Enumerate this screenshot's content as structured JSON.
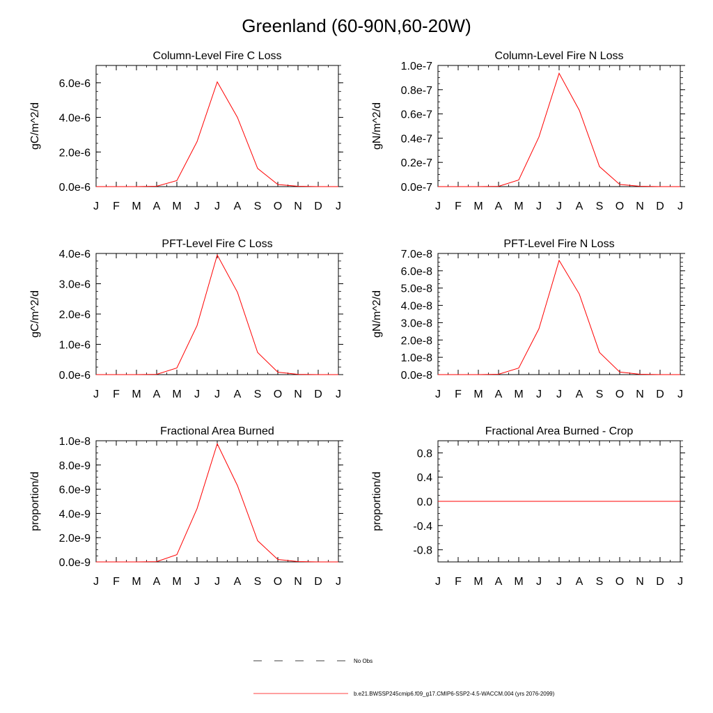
{
  "figure_title": "Greenland (60-90N,60-20W)",
  "month_labels": [
    "J",
    "F",
    "M",
    "A",
    "M",
    "J",
    "J",
    "A",
    "S",
    "O",
    "N",
    "D",
    "J"
  ],
  "colors": {
    "model": "#ff0000",
    "obs": "#000000",
    "axis": "#000000"
  },
  "legend": {
    "obs_label": "No Obs",
    "model_label": "b.e21.BWSSP245cmip6.f09_g17.CMIP6-SSP2-4.5-WACCM.004 (yrs 2076-2099)"
  },
  "chart_data": [
    {
      "type": "line",
      "title": "Column-Level Fire C Loss",
      "ylabel": "gC/m^2/d",
      "ylim": [
        0,
        7e-06
      ],
      "yticks": [
        0,
        2e-06,
        4e-06,
        6e-06
      ],
      "ytick_labels": [
        "0.0e-6",
        "2.0e-6",
        "4.0e-6",
        "6.0e-6"
      ],
      "minor_step": 5e-07,
      "series": [
        {
          "name": "b.e21.BWSSP245cmip6.f09_g17.CMIP6-SSP2-4.5-WACCM.004",
          "values": [
            0,
            0,
            0,
            2e-08,
            3.5e-07,
            2.6e-06,
            6.05e-06,
            4e-06,
            1.05e-06,
            1.2e-07,
            2e-08,
            0,
            0
          ]
        }
      ]
    },
    {
      "type": "line",
      "title": "Column-Level Fire N Loss",
      "ylabel": "gN/m^2/d",
      "ylim": [
        0,
        1e-07
      ],
      "yticks": [
        0,
        2e-08,
        4e-08,
        6e-08,
        8e-08,
        1e-07
      ],
      "ytick_labels": [
        "0.0e-7",
        "0.2e-7",
        "0.4e-7",
        "0.6e-7",
        "0.8e-7",
        "1.0e-7"
      ],
      "minor_step": 5e-09,
      "series": [
        {
          "name": "b.e21.BWSSP245cmip6.f09_g17.CMIP6-SSP2-4.5-WACCM.004",
          "values": [
            0,
            0,
            0,
            2e-10,
            5.5e-09,
            4.1e-08,
            9.35e-08,
            6.3e-08,
            1.65e-08,
            1.8e-09,
            3e-10,
            0,
            0
          ]
        }
      ]
    },
    {
      "type": "line",
      "title": "PFT-Level Fire C Loss",
      "ylabel": "gC/m^2/d",
      "ylim": [
        0,
        4e-06
      ],
      "yticks": [
        0,
        1e-06,
        2e-06,
        3e-06,
        4e-06
      ],
      "ytick_labels": [
        "0.0e-6",
        "1.0e-6",
        "2.0e-6",
        "3.0e-6",
        "4.0e-6"
      ],
      "minor_step": 2.5e-07,
      "series": [
        {
          "name": "b.e21.BWSSP245cmip6.f09_g17.CMIP6-SSP2-4.5-WACCM.004",
          "values": [
            0,
            0,
            0,
            1e-08,
            2.2e-07,
            1.62e-06,
            3.95e-06,
            2.72e-06,
            7.3e-07,
            8e-08,
            1e-08,
            0,
            0
          ]
        }
      ]
    },
    {
      "type": "line",
      "title": "PFT-Level Fire N Loss",
      "ylabel": "gN/m^2/d",
      "ylim": [
        0,
        7e-08
      ],
      "yticks": [
        0,
        1e-08,
        2e-08,
        3e-08,
        4e-08,
        5e-08,
        6e-08,
        7e-08
      ],
      "ytick_labels": [
        "0.0e-8",
        "1.0e-8",
        "2.0e-8",
        "3.0e-8",
        "4.0e-8",
        "5.0e-8",
        "6.0e-8",
        "7.0e-8"
      ],
      "minor_step": 2.5e-09,
      "series": [
        {
          "name": "b.e21.BWSSP245cmip6.f09_g17.CMIP6-SSP2-4.5-WACCM.004",
          "values": [
            0,
            0,
            0,
            2e-10,
            3.8e-09,
            2.65e-08,
            6.6e-08,
            4.65e-08,
            1.28e-08,
            1.5e-09,
            2e-10,
            0,
            0
          ]
        }
      ]
    },
    {
      "type": "line",
      "title": "Fractional Area Burned",
      "ylabel": "proportion/d",
      "ylim": [
        0,
        1e-08
      ],
      "yticks": [
        0,
        2e-09,
        4e-09,
        6e-09,
        8e-09,
        1e-08
      ],
      "ytick_labels": [
        "0.0e-9",
        "2.0e-9",
        "4.0e-9",
        "6.0e-9",
        "8.0e-9",
        "1.0e-8"
      ],
      "minor_step": 5e-10,
      "series": [
        {
          "name": "b.e21.BWSSP245cmip6.f09_g17.CMIP6-SSP2-4.5-WACCM.004",
          "values": [
            0,
            0,
            0,
            2e-11,
            6e-10,
            4.4e-09,
            9.75e-09,
            6.3e-09,
            1.75e-09,
            2e-10,
            3e-11,
            0,
            0
          ]
        }
      ]
    },
    {
      "type": "line",
      "title": "Fractional Area Burned - Crop",
      "ylabel": "proportion/d",
      "ylim": [
        -1.0,
        1.0
      ],
      "yticks": [
        -0.8,
        -0.4,
        0,
        0.4,
        0.8
      ],
      "ytick_labels": [
        "-0.8",
        "-0.4",
        "0.0",
        "0.4",
        "0.8"
      ],
      "minor_step": 0.1,
      "series": [
        {
          "name": "b.e21.BWSSP245cmip6.f09_g17.CMIP6-SSP2-4.5-WACCM.004",
          "values": [
            0,
            0,
            0,
            0,
            0,
            0,
            0,
            0,
            0,
            0,
            0,
            0,
            0
          ]
        }
      ]
    }
  ]
}
